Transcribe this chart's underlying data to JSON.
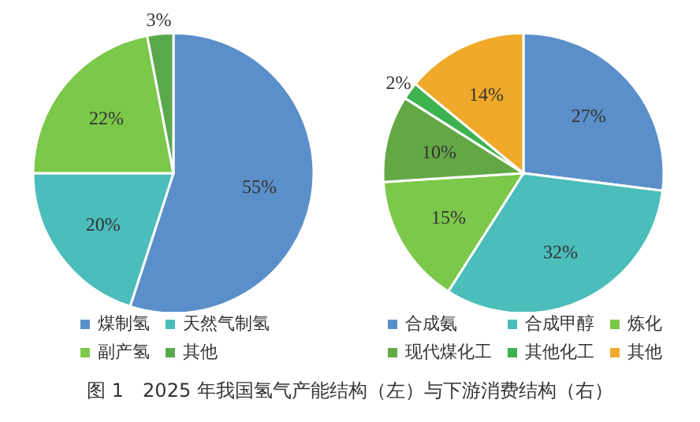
{
  "chart_data": [
    {
      "type": "pie",
      "categories": [
        "煤制氢",
        "天然气制氢",
        "副产氢",
        "其他"
      ],
      "values": [
        55,
        20,
        22,
        3
      ],
      "value_labels": [
        "55%",
        "20%",
        "22%",
        "3%"
      ],
      "colors": [
        "#5b8fc9",
        "#4bbdbb",
        "#7cc84a",
        "#5aa84c"
      ],
      "legend": "bottom",
      "annotations": [
        "图 1　2025 年我国氢气产能结构（左）与下游消费结构（右）"
      ]
    },
    {
      "type": "pie",
      "categories": [
        "合成氨",
        "合成甲醇",
        "炼化",
        "现代煤化工",
        "其他化工",
        "其他"
      ],
      "values": [
        27,
        32,
        15,
        10,
        2,
        14
      ],
      "value_labels": [
        "27%",
        "32%",
        "15%",
        "10%",
        "2%",
        "14%"
      ],
      "colors": [
        "#5b8fc9",
        "#4bbdbb",
        "#7cc84a",
        "#64a846",
        "#3db34f",
        "#f0a92a"
      ],
      "legend": "bottom"
    }
  ]
}
